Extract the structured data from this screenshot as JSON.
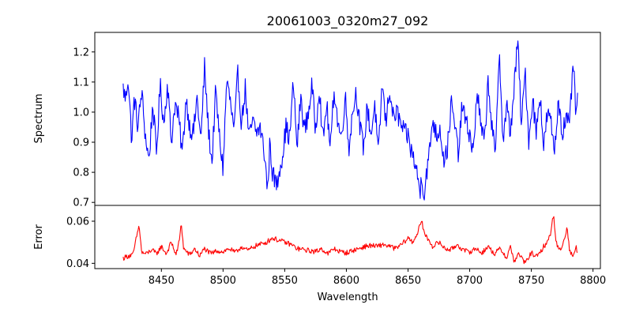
{
  "chart_data": {
    "type": "line",
    "title": "20061003_0320m27_092",
    "xlabel": "Wavelength",
    "xlim": [
      8396,
      8806
    ],
    "x_ticks": [
      8450,
      8500,
      8550,
      8600,
      8650,
      8700,
      8750,
      8800
    ],
    "x_tick_labels": [
      "8450",
      "8500",
      "8550",
      "8600",
      "8650",
      "8700",
      "8750",
      "8800"
    ],
    "panels": [
      {
        "id": "spectrum",
        "ylabel": "Spectrum",
        "ylim": [
          0.69,
          1.265
        ],
        "y_ticks": [
          0.7,
          0.8,
          0.9,
          1.0,
          1.1,
          1.2
        ],
        "y_tick_labels": [
          "0.7",
          "0.8",
          "0.9",
          "1.0",
          "1.1",
          "1.2"
        ],
        "series": [
          {
            "name": "Spectrum",
            "color": "#0000ff",
            "x_start": 8419,
            "x_end": 8788,
            "anchors": [
              [
                8419,
                1.08
              ],
              [
                8421,
                1.04
              ],
              [
                8423,
                1.12
              ],
              [
                8426,
                0.9
              ],
              [
                8428,
                1.05
              ],
              [
                8431,
                0.95
              ],
              [
                8434,
                1.07
              ],
              [
                8437,
                0.92
              ],
              [
                8440,
                0.84
              ],
              [
                8443,
                1.03
              ],
              [
                8446,
                0.86
              ],
              [
                8449,
                1.09
              ],
              [
                8452,
                0.96
              ],
              [
                8455,
                1.1
              ],
              [
                8458,
                0.9
              ],
              [
                8461,
                1.03
              ],
              [
                8464,
                0.98
              ],
              [
                8467,
                0.86
              ],
              [
                8470,
                1.05
              ],
              [
                8473,
                0.95
              ],
              [
                8476,
                0.93
              ],
              [
                8479,
                1.05
              ],
              [
                8482,
                0.9
              ],
              [
                8485,
                1.15
              ],
              [
                8488,
                0.95
              ],
              [
                8491,
                0.83
              ],
              [
                8494,
                1.07
              ],
              [
                8497,
                0.92
              ],
              [
                8500,
                0.81
              ],
              [
                8503,
                1.11
              ],
              [
                8506,
                1.03
              ],
              [
                8509,
                0.93
              ],
              [
                8512,
                1.13
              ],
              [
                8515,
                0.96
              ],
              [
                8518,
                1.08
              ],
              [
                8521,
                0.91
              ],
              [
                8524,
                0.97
              ],
              [
                8527,
                0.93
              ],
              [
                8530,
                0.95
              ],
              [
                8533,
                0.88
              ],
              [
                8535,
                0.8
              ],
              [
                8536,
                0.73
              ],
              [
                8538,
                0.9
              ],
              [
                8540,
                0.8
              ],
              [
                8542,
                0.77
              ],
              [
                8544,
                0.76
              ],
              [
                8546,
                0.82
              ],
              [
                8548,
                0.85
              ],
              [
                8551,
                0.95
              ],
              [
                8554,
                0.91
              ],
              [
                8557,
                1.1
              ],
              [
                8560,
                0.88
              ],
              [
                8563,
                1.05
              ],
              [
                8566,
                0.94
              ],
              [
                8569,
                0.99
              ],
              [
                8572,
                1.09
              ],
              [
                8575,
                0.94
              ],
              [
                8578,
                1.09
              ],
              [
                8581,
                0.9
              ],
              [
                8584,
                1.03
              ],
              [
                8587,
                0.87
              ],
              [
                8590,
                1.08
              ],
              [
                8593,
                0.97
              ],
              [
                8596,
                0.91
              ],
              [
                8599,
                1.06
              ],
              [
                8602,
                0.88
              ],
              [
                8605,
                1.0
              ],
              [
                8608,
                1.07
              ],
              [
                8611,
                0.95
              ],
              [
                8614,
                0.88
              ],
              [
                8617,
                1.02
              ],
              [
                8620,
                0.92
              ],
              [
                8623,
                1.03
              ],
              [
                8626,
                0.85
              ],
              [
                8629,
                1.1
              ],
              [
                8632,
                0.96
              ],
              [
                8635,
                1.08
              ],
              [
                8638,
                0.98
              ],
              [
                8641,
                1.0
              ],
              [
                8644,
                0.96
              ],
              [
                8647,
                0.93
              ],
              [
                8650,
                0.92
              ],
              [
                8652,
                0.88
              ],
              [
                8655,
                0.84
              ],
              [
                8658,
                0.78
              ],
              [
                8660,
                0.73
              ],
              [
                8661,
                0.8
              ],
              [
                8663,
                0.72
              ],
              [
                8665,
                0.8
              ],
              [
                8667,
                0.85
              ],
              [
                8670,
                0.98
              ],
              [
                8673,
                0.92
              ],
              [
                8676,
                0.95
              ],
              [
                8679,
                0.84
              ],
              [
                8682,
                0.88
              ],
              [
                8685,
                1.03
              ],
              [
                8688,
                0.95
              ],
              [
                8691,
                0.86
              ],
              [
                8694,
                1.03
              ],
              [
                8697,
                0.96
              ],
              [
                8700,
                0.93
              ],
              [
                8703,
                0.86
              ],
              [
                8706,
                1.08
              ],
              [
                8709,
                0.95
              ],
              [
                8712,
                0.9
              ],
              [
                8715,
                1.11
              ],
              [
                8718,
                0.95
              ],
              [
                8721,
                0.85
              ],
              [
                8724,
                1.22
              ],
              [
                8727,
                0.9
              ],
              [
                8730,
                1.02
              ],
              [
                8733,
                0.93
              ],
              [
                8736,
                1.08
              ],
              [
                8739,
                1.24
              ],
              [
                8742,
                0.95
              ],
              [
                8745,
                1.14
              ],
              [
                8748,
                0.9
              ],
              [
                8751,
                1.05
              ],
              [
                8754,
                0.93
              ],
              [
                8757,
                1.07
              ],
              [
                8760,
                0.88
              ],
              [
                8763,
                1.0
              ],
              [
                8766,
                0.96
              ],
              [
                8769,
                0.87
              ],
              [
                8772,
                1.05
              ],
              [
                8775,
                0.93
              ],
              [
                8778,
                0.98
              ],
              [
                8781,
                0.95
              ],
              [
                8784,
                1.18
              ],
              [
                8786,
                0.98
              ],
              [
                8788,
                1.07
              ]
            ]
          }
        ]
      },
      {
        "id": "error",
        "ylabel": "Error",
        "ylim": [
          0.0375,
          0.0675
        ],
        "y_ticks": [
          0.04,
          0.06
        ],
        "y_tick_labels": [
          "0.04",
          "0.06"
        ],
        "series": [
          {
            "name": "Error",
            "color": "#ff0000",
            "x_start": 8419,
            "x_end": 8788,
            "anchors": [
              [
                8419,
                0.0425
              ],
              [
                8423,
                0.0435
              ],
              [
                8427,
                0.044
              ],
              [
                8430,
                0.053
              ],
              [
                8432,
                0.058
              ],
              [
                8434,
                0.045
              ],
              [
                8438,
                0.0445
              ],
              [
                8442,
                0.0465
              ],
              [
                8446,
                0.0445
              ],
              [
                8450,
                0.048
              ],
              [
                8454,
                0.0445
              ],
              [
                8458,
                0.05
              ],
              [
                8462,
                0.044
              ],
              [
                8465,
                0.052
              ],
              [
                8466,
                0.06
              ],
              [
                8468,
                0.047
              ],
              [
                8473,
                0.044
              ],
              [
                8477,
                0.047
              ],
              [
                8481,
                0.0435
              ],
              [
                8485,
                0.047
              ],
              [
                8490,
                0.0445
              ],
              [
                8495,
                0.046
              ],
              [
                8500,
                0.0455
              ],
              [
                8505,
                0.047
              ],
              [
                8510,
                0.045
              ],
              [
                8515,
                0.048
              ],
              [
                8520,
                0.046
              ],
              [
                8525,
                0.048
              ],
              [
                8530,
                0.049
              ],
              [
                8535,
                0.05
              ],
              [
                8540,
                0.052
              ],
              [
                8545,
                0.051
              ],
              [
                8550,
                0.05
              ],
              [
                8555,
                0.049
              ],
              [
                8560,
                0.047
              ],
              [
                8565,
                0.0465
              ],
              [
                8570,
                0.046
              ],
              [
                8575,
                0.0455
              ],
              [
                8580,
                0.047
              ],
              [
                8585,
                0.0445
              ],
              [
                8590,
                0.047
              ],
              [
                8595,
                0.0455
              ],
              [
                8600,
                0.045
              ],
              [
                8605,
                0.046
              ],
              [
                8610,
                0.047
              ],
              [
                8615,
                0.048
              ],
              [
                8620,
                0.0485
              ],
              [
                8625,
                0.048
              ],
              [
                8630,
                0.049
              ],
              [
                8635,
                0.048
              ],
              [
                8640,
                0.047
              ],
              [
                8645,
                0.049
              ],
              [
                8650,
                0.052
              ],
              [
                8654,
                0.05
              ],
              [
                8658,
                0.055
              ],
              [
                8661,
                0.06
              ],
              [
                8664,
                0.053
              ],
              [
                8667,
                0.051
              ],
              [
                8670,
                0.048
              ],
              [
                8675,
                0.05
              ],
              [
                8680,
                0.047
              ],
              [
                8685,
                0.0465
              ],
              [
                8690,
                0.049
              ],
              [
                8695,
                0.046
              ],
              [
                8700,
                0.0455
              ],
              [
                8705,
                0.047
              ],
              [
                8710,
                0.045
              ],
              [
                8715,
                0.048
              ],
              [
                8720,
                0.0445
              ],
              [
                8725,
                0.047
              ],
              [
                8730,
                0.0425
              ],
              [
                8733,
                0.048
              ],
              [
                8736,
                0.041
              ],
              [
                8740,
                0.0445
              ],
              [
                8745,
                0.04
              ],
              [
                8750,
                0.045
              ],
              [
                8755,
                0.043
              ],
              [
                8760,
                0.048
              ],
              [
                8763,
                0.05
              ],
              [
                8766,
                0.055
              ],
              [
                8768,
                0.064
              ],
              [
                8770,
                0.05
              ],
              [
                8773,
                0.046
              ],
              [
                8776,
                0.05
              ],
              [
                8779,
                0.057
              ],
              [
                8781,
                0.046
              ],
              [
                8784,
                0.043
              ],
              [
                8786,
                0.0485
              ],
              [
                8788,
                0.0435
              ]
            ]
          }
        ]
      }
    ]
  }
}
